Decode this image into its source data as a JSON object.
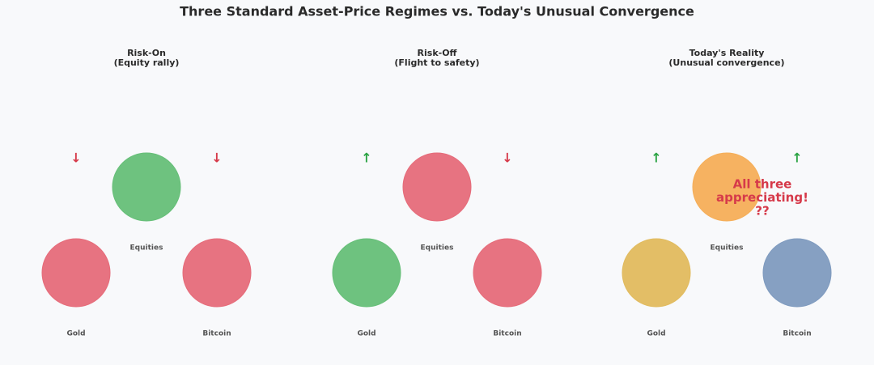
{
  "title": "Three Standard Asset-Price Regimes vs. Today's Unusual Convergence",
  "panels": [
    {
      "title": [
        "Risk-On",
        "(Equity rally)"
      ],
      "nodes": [
        {
          "label": "Equities",
          "color": "#66bf78"
        },
        {
          "label": "Gold",
          "color": "#e66c7a",
          "arrow": "↓",
          "arrow_color": "#d63a4a"
        },
        {
          "label": "Bitcoin",
          "color": "#e66c7a",
          "arrow": "↓",
          "arrow_color": "#d63a4a"
        }
      ]
    },
    {
      "title": [
        "Risk-Off",
        "(Flight to safety)"
      ],
      "nodes": [
        {
          "label": "Equities",
          "color": "#e66c7a"
        },
        {
          "label": "Gold",
          "color": "#66bf78",
          "arrow": "↑",
          "arrow_color": "#2ca444"
        },
        {
          "label": "Bitcoin",
          "color": "#e66c7a",
          "arrow": "↓",
          "arrow_color": "#d63a4a"
        }
      ]
    },
    {
      "title": [
        "Today's Reality",
        "(Unusual convergence)"
      ],
      "nodes": [
        {
          "label": "Equities",
          "color": "#f5ae58"
        },
        {
          "label": "Gold",
          "color": "#e1bb5e",
          "arrow": "↑",
          "arrow_color": "#2ca444"
        },
        {
          "label": "Bitcoin",
          "color": "#7f9bbf",
          "arrow": "↑",
          "arrow_color": "#2ca444"
        }
      ],
      "annotation": [
        "All three",
        "appreciating!",
        "??"
      ],
      "annotation_color": "#d63a4a"
    }
  ]
}
